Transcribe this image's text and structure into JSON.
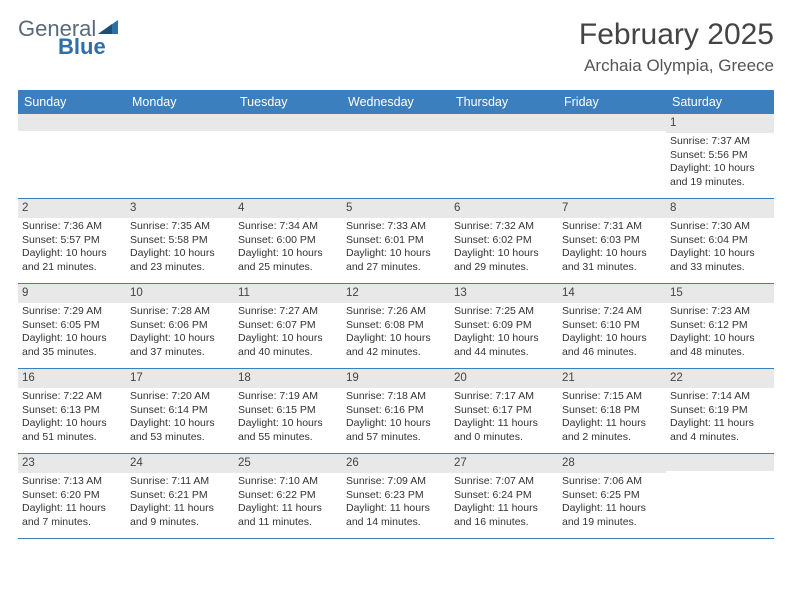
{
  "brand": {
    "part1": "General",
    "part2": "Blue"
  },
  "title": "February 2025",
  "location": "Archaia Olympia, Greece",
  "colors": {
    "header_bg": "#3b7fbf",
    "header_text": "#ffffff",
    "date_bg": "#e8e8e8",
    "border": "#3b7fbf",
    "logo_gray": "#5a6a7a",
    "logo_blue": "#2f6fa8"
  },
  "day_names": [
    "Sunday",
    "Monday",
    "Tuesday",
    "Wednesday",
    "Thursday",
    "Friday",
    "Saturday"
  ],
  "weeks": [
    [
      {
        "date": "",
        "sunrise": "",
        "sunset": "",
        "daylight": ""
      },
      {
        "date": "",
        "sunrise": "",
        "sunset": "",
        "daylight": ""
      },
      {
        "date": "",
        "sunrise": "",
        "sunset": "",
        "daylight": ""
      },
      {
        "date": "",
        "sunrise": "",
        "sunset": "",
        "daylight": ""
      },
      {
        "date": "",
        "sunrise": "",
        "sunset": "",
        "daylight": ""
      },
      {
        "date": "",
        "sunrise": "",
        "sunset": "",
        "daylight": ""
      },
      {
        "date": "1",
        "sunrise": "Sunrise: 7:37 AM",
        "sunset": "Sunset: 5:56 PM",
        "daylight": "Daylight: 10 hours and 19 minutes."
      }
    ],
    [
      {
        "date": "2",
        "sunrise": "Sunrise: 7:36 AM",
        "sunset": "Sunset: 5:57 PM",
        "daylight": "Daylight: 10 hours and 21 minutes."
      },
      {
        "date": "3",
        "sunrise": "Sunrise: 7:35 AM",
        "sunset": "Sunset: 5:58 PM",
        "daylight": "Daylight: 10 hours and 23 minutes."
      },
      {
        "date": "4",
        "sunrise": "Sunrise: 7:34 AM",
        "sunset": "Sunset: 6:00 PM",
        "daylight": "Daylight: 10 hours and 25 minutes."
      },
      {
        "date": "5",
        "sunrise": "Sunrise: 7:33 AM",
        "sunset": "Sunset: 6:01 PM",
        "daylight": "Daylight: 10 hours and 27 minutes."
      },
      {
        "date": "6",
        "sunrise": "Sunrise: 7:32 AM",
        "sunset": "Sunset: 6:02 PM",
        "daylight": "Daylight: 10 hours and 29 minutes."
      },
      {
        "date": "7",
        "sunrise": "Sunrise: 7:31 AM",
        "sunset": "Sunset: 6:03 PM",
        "daylight": "Daylight: 10 hours and 31 minutes."
      },
      {
        "date": "8",
        "sunrise": "Sunrise: 7:30 AM",
        "sunset": "Sunset: 6:04 PM",
        "daylight": "Daylight: 10 hours and 33 minutes."
      }
    ],
    [
      {
        "date": "9",
        "sunrise": "Sunrise: 7:29 AM",
        "sunset": "Sunset: 6:05 PM",
        "daylight": "Daylight: 10 hours and 35 minutes."
      },
      {
        "date": "10",
        "sunrise": "Sunrise: 7:28 AM",
        "sunset": "Sunset: 6:06 PM",
        "daylight": "Daylight: 10 hours and 37 minutes."
      },
      {
        "date": "11",
        "sunrise": "Sunrise: 7:27 AM",
        "sunset": "Sunset: 6:07 PM",
        "daylight": "Daylight: 10 hours and 40 minutes."
      },
      {
        "date": "12",
        "sunrise": "Sunrise: 7:26 AM",
        "sunset": "Sunset: 6:08 PM",
        "daylight": "Daylight: 10 hours and 42 minutes."
      },
      {
        "date": "13",
        "sunrise": "Sunrise: 7:25 AM",
        "sunset": "Sunset: 6:09 PM",
        "daylight": "Daylight: 10 hours and 44 minutes."
      },
      {
        "date": "14",
        "sunrise": "Sunrise: 7:24 AM",
        "sunset": "Sunset: 6:10 PM",
        "daylight": "Daylight: 10 hours and 46 minutes."
      },
      {
        "date": "15",
        "sunrise": "Sunrise: 7:23 AM",
        "sunset": "Sunset: 6:12 PM",
        "daylight": "Daylight: 10 hours and 48 minutes."
      }
    ],
    [
      {
        "date": "16",
        "sunrise": "Sunrise: 7:22 AM",
        "sunset": "Sunset: 6:13 PM",
        "daylight": "Daylight: 10 hours and 51 minutes."
      },
      {
        "date": "17",
        "sunrise": "Sunrise: 7:20 AM",
        "sunset": "Sunset: 6:14 PM",
        "daylight": "Daylight: 10 hours and 53 minutes."
      },
      {
        "date": "18",
        "sunrise": "Sunrise: 7:19 AM",
        "sunset": "Sunset: 6:15 PM",
        "daylight": "Daylight: 10 hours and 55 minutes."
      },
      {
        "date": "19",
        "sunrise": "Sunrise: 7:18 AM",
        "sunset": "Sunset: 6:16 PM",
        "daylight": "Daylight: 10 hours and 57 minutes."
      },
      {
        "date": "20",
        "sunrise": "Sunrise: 7:17 AM",
        "sunset": "Sunset: 6:17 PM",
        "daylight": "Daylight: 11 hours and 0 minutes."
      },
      {
        "date": "21",
        "sunrise": "Sunrise: 7:15 AM",
        "sunset": "Sunset: 6:18 PM",
        "daylight": "Daylight: 11 hours and 2 minutes."
      },
      {
        "date": "22",
        "sunrise": "Sunrise: 7:14 AM",
        "sunset": "Sunset: 6:19 PM",
        "daylight": "Daylight: 11 hours and 4 minutes."
      }
    ],
    [
      {
        "date": "23",
        "sunrise": "Sunrise: 7:13 AM",
        "sunset": "Sunset: 6:20 PM",
        "daylight": "Daylight: 11 hours and 7 minutes."
      },
      {
        "date": "24",
        "sunrise": "Sunrise: 7:11 AM",
        "sunset": "Sunset: 6:21 PM",
        "daylight": "Daylight: 11 hours and 9 minutes."
      },
      {
        "date": "25",
        "sunrise": "Sunrise: 7:10 AM",
        "sunset": "Sunset: 6:22 PM",
        "daylight": "Daylight: 11 hours and 11 minutes."
      },
      {
        "date": "26",
        "sunrise": "Sunrise: 7:09 AM",
        "sunset": "Sunset: 6:23 PM",
        "daylight": "Daylight: 11 hours and 14 minutes."
      },
      {
        "date": "27",
        "sunrise": "Sunrise: 7:07 AM",
        "sunset": "Sunset: 6:24 PM",
        "daylight": "Daylight: 11 hours and 16 minutes."
      },
      {
        "date": "28",
        "sunrise": "Sunrise: 7:06 AM",
        "sunset": "Sunset: 6:25 PM",
        "daylight": "Daylight: 11 hours and 19 minutes."
      },
      {
        "date": "",
        "sunrise": "",
        "sunset": "",
        "daylight": ""
      }
    ]
  ]
}
